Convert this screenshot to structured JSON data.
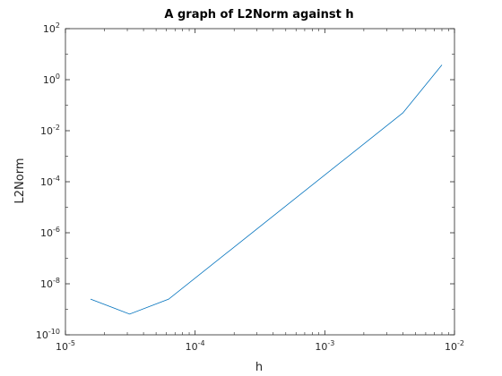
{
  "chart_data": {
    "type": "line",
    "title": "A graph of L2Norm against h",
    "xlabel": "h",
    "ylabel": "L2Norm",
    "xscale": "log",
    "yscale": "log",
    "xlim": [
      1e-05,
      0.01
    ],
    "ylim": [
      1e-10,
      100
    ],
    "x_ticks": [
      {
        "value": 1e-05,
        "base": "10",
        "exp": "-5"
      },
      {
        "value": 0.0001,
        "base": "10",
        "exp": "-4"
      },
      {
        "value": 0.001,
        "base": "10",
        "exp": "-3"
      },
      {
        "value": 0.01,
        "base": "10",
        "exp": "-2"
      }
    ],
    "y_ticks": [
      {
        "value": 1e-10,
        "base": "10",
        "exp": "-10"
      },
      {
        "value": 1e-08,
        "base": "10",
        "exp": "-8"
      },
      {
        "value": 1e-06,
        "base": "10",
        "exp": "-6"
      },
      {
        "value": 0.0001,
        "base": "10",
        "exp": "-4"
      },
      {
        "value": 0.01,
        "base": "10",
        "exp": "-2"
      },
      {
        "value": 1,
        "base": "10",
        "exp": "0"
      },
      {
        "value": 100,
        "base": "10",
        "exp": "2"
      }
    ],
    "grid": false,
    "line_color": "#0072bd",
    "series": [
      {
        "x": [
          1.5625e-05,
          3.125e-05,
          6.25e-05,
          0.004,
          0.008
        ],
        "y": [
          2.5e-09,
          6.5e-10,
          2.5e-09,
          0.05,
          3.8
        ]
      }
    ]
  }
}
